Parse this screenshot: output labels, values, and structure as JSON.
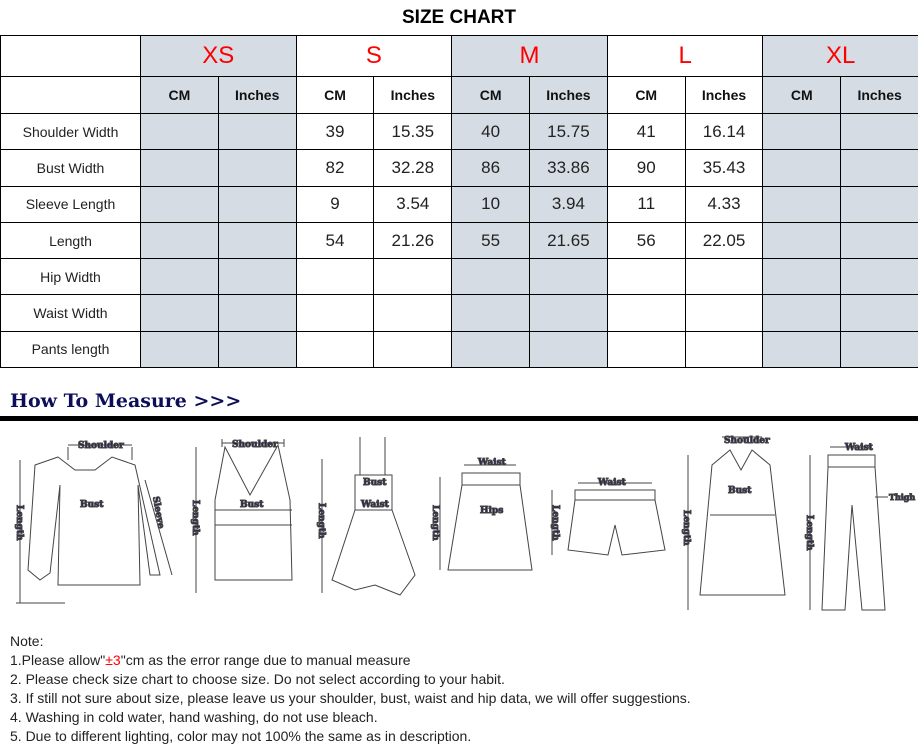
{
  "title": "SIZE CHART",
  "sizes": [
    "XS",
    "S",
    "M",
    "L",
    "XL"
  ],
  "units": [
    "CM",
    "Inches"
  ],
  "rows": [
    {
      "label": "Shoulder Width",
      "values": [
        "",
        "",
        "39",
        "15.35",
        "40",
        "15.75",
        "41",
        "16.14",
        "",
        ""
      ]
    },
    {
      "label": "Bust Width",
      "values": [
        "",
        "",
        "82",
        "32.28",
        "86",
        "33.86",
        "90",
        "35.43",
        "",
        ""
      ]
    },
    {
      "label": "Sleeve Length",
      "values": [
        "",
        "",
        "9",
        "3.54",
        "10",
        "3.94",
        "11",
        "4.33",
        "",
        ""
      ]
    },
    {
      "label": "Length",
      "values": [
        "",
        "",
        "54",
        "21.26",
        "55",
        "21.65",
        "56",
        "22.05",
        "",
        ""
      ]
    },
    {
      "label": "Hip Width",
      "values": [
        "",
        "",
        "",
        "",
        "",
        "",
        "",
        "",
        "",
        ""
      ]
    },
    {
      "label": "Waist Width",
      "values": [
        "",
        "",
        "",
        "",
        "",
        "",
        "",
        "",
        "",
        ""
      ]
    },
    {
      "label": "Pants length",
      "values": [
        "",
        "",
        "",
        "",
        "",
        "",
        "",
        "",
        "",
        ""
      ]
    }
  ],
  "colors": {
    "size_label": "#ff0000",
    "shaded_column": "#d6dce4",
    "heading": "#0d0d5a"
  },
  "how_to_measure": {
    "heading": "How To Measure >>>",
    "labels": {
      "shoulder": "Shoulder",
      "bust": "Bust",
      "sleeve": "Sleeve",
      "length": "Length",
      "waist": "Waist",
      "hips": "Hips",
      "thigh": "Thigh"
    }
  },
  "notes": {
    "heading": "Note:",
    "n1_pre": "1.Please allow\"",
    "n1_red": "±3",
    "n1_post": "\"cm as the error range due to manual measure",
    "n2": "2. Please check size chart to choose size. Do not select according to your habit.",
    "n3": "3. If still not sure about size, please leave us your shoulder, bust, waist and hip data, we will offer suggestions.",
    "n4": "4. Washing in cold water, hand washing, do not use bleach.",
    "n5": "5. Due to different lighting, color may not 100% the same as in description."
  }
}
